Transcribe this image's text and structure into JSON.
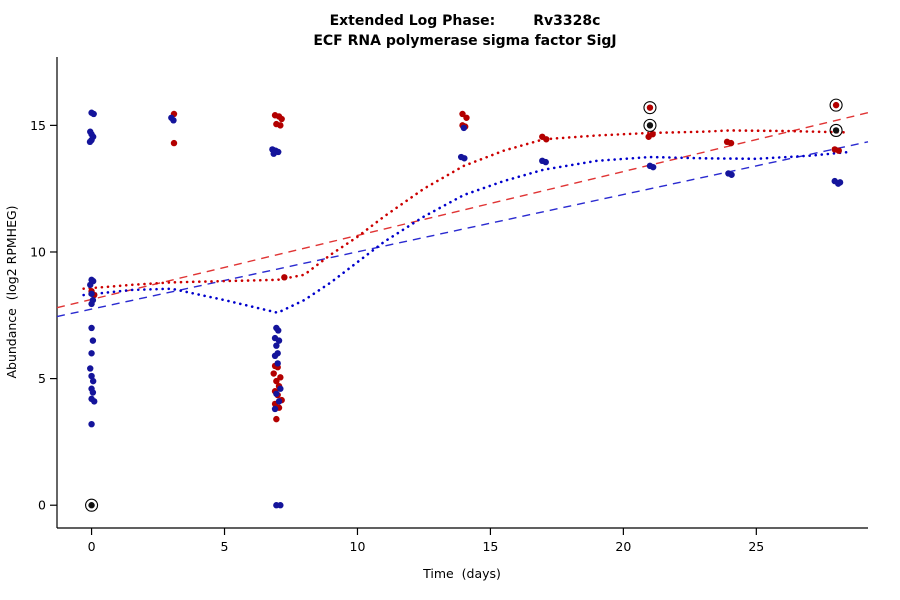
{
  "title": {
    "left": "Extended Log Phase:",
    "right": "Rv3328c",
    "line2": "ECF RNA polymerase sigma factor SigJ"
  },
  "chart_data": {
    "type": "scatter",
    "xlabel": "Time  (days)",
    "ylabel": "Abundance  (log2 RPMHEG)",
    "xlim": [
      -1.3,
      29.2
    ],
    "ylim": [
      -0.9,
      17.7
    ],
    "xticks": [
      0,
      5,
      10,
      15,
      20,
      25
    ],
    "yticks": [
      0,
      5,
      10,
      15
    ],
    "grid": false,
    "legend": "none",
    "point_colors": {
      "red": "#b30000",
      "blue": "#14149b",
      "black": "#111111"
    },
    "series": [
      {
        "name": "red-points",
        "color": "#b30000",
        "points": [
          [
            0.0,
            8.45
          ],
          [
            0.1,
            8.3
          ],
          [
            3.1,
            15.45
          ],
          [
            3.1,
            14.3
          ],
          [
            6.9,
            15.4
          ],
          [
            7.05,
            15.35
          ],
          [
            7.15,
            15.25
          ],
          [
            6.95,
            15.05
          ],
          [
            7.1,
            15.0
          ],
          [
            7.25,
            9.0
          ],
          [
            6.9,
            5.5
          ],
          [
            7.0,
            5.45
          ],
          [
            6.85,
            5.2
          ],
          [
            7.1,
            5.05
          ],
          [
            6.95,
            4.9
          ],
          [
            7.05,
            4.7
          ],
          [
            6.9,
            4.5
          ],
          [
            7.0,
            4.35
          ],
          [
            7.15,
            4.15
          ],
          [
            6.9,
            4.0
          ],
          [
            7.05,
            3.85
          ],
          [
            6.95,
            3.4
          ],
          [
            13.95,
            15.45
          ],
          [
            14.1,
            15.3
          ],
          [
            13.95,
            15.0
          ],
          [
            14.05,
            14.95
          ],
          [
            16.95,
            14.55
          ],
          [
            17.1,
            14.45
          ],
          [
            21.1,
            14.65
          ],
          [
            20.95,
            14.55
          ],
          [
            23.9,
            14.35
          ],
          [
            24.05,
            14.3
          ],
          [
            27.95,
            14.05
          ],
          [
            28.1,
            14.0
          ]
        ]
      },
      {
        "name": "blue-points",
        "color": "#14149b",
        "points": [
          [
            0.0,
            15.5
          ],
          [
            0.08,
            15.45
          ],
          [
            -0.05,
            14.75
          ],
          [
            0.0,
            14.65
          ],
          [
            0.06,
            14.55
          ],
          [
            0.0,
            14.42
          ],
          [
            -0.06,
            14.35
          ],
          [
            0.0,
            8.9
          ],
          [
            0.06,
            8.85
          ],
          [
            -0.05,
            8.7
          ],
          [
            0.0,
            8.35
          ],
          [
            0.05,
            8.1
          ],
          [
            0.0,
            7.95
          ],
          [
            0.0,
            7.0
          ],
          [
            0.05,
            6.5
          ],
          [
            0.0,
            6.0
          ],
          [
            -0.05,
            5.4
          ],
          [
            0.0,
            5.1
          ],
          [
            0.06,
            4.9
          ],
          [
            0.0,
            4.6
          ],
          [
            0.05,
            4.45
          ],
          [
            0.0,
            4.2
          ],
          [
            0.1,
            4.1
          ],
          [
            0.0,
            3.2
          ],
          [
            3.0,
            15.3
          ],
          [
            3.08,
            15.2
          ],
          [
            6.8,
            14.05
          ],
          [
            6.92,
            14.0
          ],
          [
            7.02,
            13.95
          ],
          [
            6.85,
            13.88
          ],
          [
            6.95,
            7.0
          ],
          [
            7.02,
            6.9
          ],
          [
            6.9,
            6.6
          ],
          [
            7.05,
            6.5
          ],
          [
            6.95,
            6.3
          ],
          [
            7.0,
            6.0
          ],
          [
            6.9,
            5.9
          ],
          [
            7.0,
            5.6
          ],
          [
            7.1,
            4.6
          ],
          [
            6.95,
            4.4
          ],
          [
            7.05,
            4.1
          ],
          [
            6.9,
            3.8
          ],
          [
            6.95,
            0.0
          ],
          [
            7.1,
            0.0
          ],
          [
            14.0,
            14.9
          ],
          [
            13.9,
            13.75
          ],
          [
            14.02,
            13.7
          ],
          [
            16.95,
            13.6
          ],
          [
            17.08,
            13.55
          ],
          [
            21.0,
            13.4
          ],
          [
            21.12,
            13.35
          ],
          [
            23.95,
            13.1
          ],
          [
            24.07,
            13.05
          ],
          [
            27.95,
            12.8
          ],
          [
            28.08,
            12.7
          ],
          [
            28.15,
            12.75
          ]
        ]
      }
    ],
    "circled_points": [
      {
        "x": 0.0,
        "y": 0.0,
        "color": "#111111"
      },
      {
        "x": 21.0,
        "y": 15.7,
        "color": "#b30000"
      },
      {
        "x": 21.0,
        "y": 15.0,
        "color": "#111111"
      },
      {
        "x": 28.0,
        "y": 15.8,
        "color": "#b30000"
      },
      {
        "x": 28.0,
        "y": 14.8,
        "color": "#111111"
      }
    ],
    "lines": [
      {
        "name": "red-trend-dashed",
        "style": "dashed",
        "color": "#e03434",
        "width": 1.4,
        "points": [
          [
            -1.3,
            7.8
          ],
          [
            29.2,
            15.5
          ]
        ]
      },
      {
        "name": "blue-trend-dashed",
        "style": "dashed",
        "color": "#2a2ad0",
        "width": 1.4,
        "points": [
          [
            -1.3,
            7.45
          ],
          [
            29.2,
            14.35
          ]
        ]
      },
      {
        "name": "red-smooth-dotted",
        "style": "dotted",
        "color": "#cc0000",
        "width": 2.6,
        "points": [
          [
            -0.3,
            8.55
          ],
          [
            1.5,
            8.7
          ],
          [
            3,
            8.8
          ],
          [
            5,
            8.85
          ],
          [
            7,
            8.9
          ],
          [
            8,
            9.1
          ],
          [
            9,
            9.9
          ],
          [
            10,
            10.6
          ],
          [
            11,
            11.4
          ],
          [
            12.5,
            12.5
          ],
          [
            14,
            13.4
          ],
          [
            15.5,
            14.0
          ],
          [
            17,
            14.45
          ],
          [
            19,
            14.6
          ],
          [
            21,
            14.7
          ],
          [
            23,
            14.75
          ],
          [
            24,
            14.8
          ],
          [
            26,
            14.78
          ],
          [
            28.5,
            14.72
          ]
        ]
      },
      {
        "name": "blue-smooth-dotted",
        "style": "dotted",
        "color": "#0000cc",
        "width": 2.6,
        "points": [
          [
            -0.3,
            8.3
          ],
          [
            1.5,
            8.5
          ],
          [
            3,
            8.55
          ],
          [
            5,
            8.1
          ],
          [
            7,
            7.6
          ],
          [
            8,
            8.1
          ],
          [
            9,
            8.8
          ],
          [
            10,
            9.6
          ],
          [
            11,
            10.4
          ],
          [
            12.5,
            11.4
          ],
          [
            14,
            12.25
          ],
          [
            15.5,
            12.8
          ],
          [
            17,
            13.25
          ],
          [
            19,
            13.6
          ],
          [
            21,
            13.75
          ],
          [
            23,
            13.7
          ],
          [
            25,
            13.68
          ],
          [
            27,
            13.8
          ],
          [
            28.5,
            13.95
          ]
        ]
      }
    ]
  }
}
